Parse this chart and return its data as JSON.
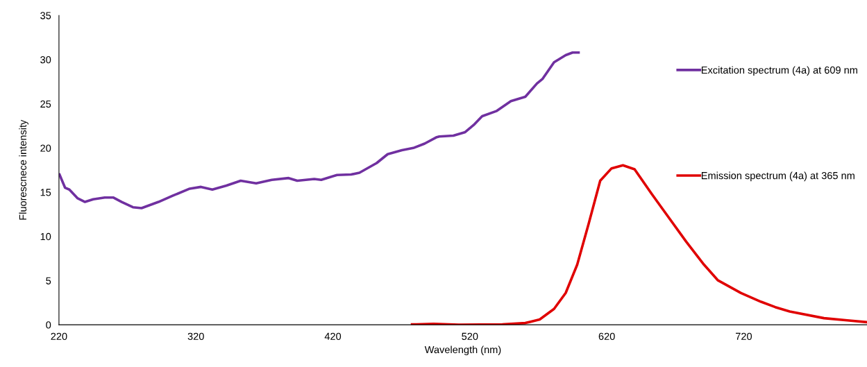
{
  "chart_data": {
    "type": "line",
    "xlabel": "Wavelength (nm)",
    "ylabel": "Fluorescnece intensity",
    "xlim": [
      220,
      810
    ],
    "xticks": [
      220,
      320,
      420,
      520,
      620,
      720
    ],
    "ylim": [
      0,
      35
    ],
    "yticks": [
      0,
      5,
      10,
      15,
      20,
      25,
      30,
      35
    ],
    "grid": false,
    "legend": "right",
    "marker": "none",
    "line_style": "solid",
    "series": [
      {
        "name": "Excitation spectrum (4a) at 609 nm",
        "color": "#7030a0",
        "x": [
          220.4,
          224.5,
          227.6,
          233.7,
          239,
          245,
          253.4,
          259.6,
          265.8,
          274,
          280.3,
          292.7,
          303,
          315.5,
          323.7,
          332,
          342.3,
          352.7,
          364,
          375.4,
          387.7,
          394,
          406.4,
          411.5,
          423,
          433.3,
          439.4,
          452,
          460,
          470.4,
          478.7,
          487,
          495.4,
          497.7,
          508,
          516.6,
          522.8,
          529,
          539.7,
          550,
          560.5,
          569,
          573,
          581.5,
          590,
          595,
          599.4
        ],
        "values": [
          17.0,
          15.5,
          15.3,
          14.3,
          13.9,
          14.2,
          14.4,
          14.4,
          13.9,
          13.3,
          13.2,
          13.9,
          14.6,
          15.4,
          15.6,
          15.3,
          15.75,
          16.3,
          16.0,
          16.4,
          16.6,
          16.3,
          16.5,
          16.4,
          16.95,
          17.0,
          17.2,
          18.3,
          19.3,
          19.75,
          20.0,
          20.5,
          21.2,
          21.3,
          21.4,
          21.8,
          22.6,
          23.6,
          24.2,
          25.3,
          25.8,
          27.3,
          27.8,
          29.7,
          30.5,
          30.8,
          30.8
        ]
      },
      {
        "name": "Emission spectrum (4a) at 365 nm",
        "color": "#e00000",
        "x": [
          477.8,
          481,
          493.5,
          512,
          543.7,
          560.5,
          571,
          581.5,
          590,
          598.4,
          606.7,
          615.2,
          623.5,
          631.8,
          640.3,
          652.8,
          661.2,
          678,
          691,
          701,
          718,
          732.7,
          743,
          753.6,
          778.6,
          795.6,
          809.8
        ],
        "values": [
          0.05,
          0.05,
          0.1,
          0.0,
          0.05,
          0.2,
          0.6,
          1.8,
          3.6,
          6.8,
          11.4,
          16.3,
          17.7,
          18.05,
          17.6,
          14.8,
          13.0,
          9.4,
          6.8,
          5.05,
          3.6,
          2.6,
          2.0,
          1.5,
          0.75,
          0.5,
          0.3
        ]
      }
    ]
  }
}
